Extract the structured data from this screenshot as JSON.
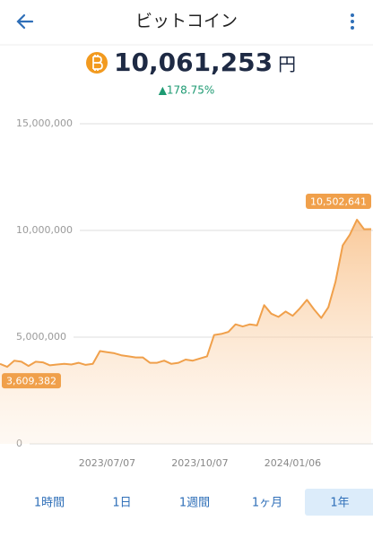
{
  "header": {
    "title": "ビットコイン"
  },
  "price": {
    "value": "10,061,253",
    "unit": "円",
    "change": "▲178.75%"
  },
  "chart_data": {
    "type": "area",
    "categories": [
      null,
      null,
      null,
      null,
      null,
      null,
      null,
      null,
      null,
      null,
      null,
      null,
      null,
      null,
      null,
      "2023/07/07",
      null,
      null,
      null,
      null,
      null,
      null,
      null,
      null,
      null,
      null,
      null,
      null,
      "2023/10/07",
      null,
      null,
      null,
      null,
      null,
      null,
      null,
      null,
      null,
      null,
      null,
      null,
      "2024/01/06",
      null,
      null,
      null,
      null,
      null,
      null,
      null,
      null,
      null,
      null,
      null
    ],
    "values": [
      3750000,
      3609382,
      3900000,
      3850000,
      3650000,
      3850000,
      3820000,
      3680000,
      3720000,
      3750000,
      3720000,
      3800000,
      3700000,
      3750000,
      4350000,
      4300000,
      4250000,
      4150000,
      4100000,
      4050000,
      4050000,
      3800000,
      3800000,
      3900000,
      3750000,
      3800000,
      3950000,
      3900000,
      4000000,
      4100000,
      5100000,
      5150000,
      5250000,
      5600000,
      5500000,
      5600000,
      5550000,
      6500000,
      6100000,
      5950000,
      6200000,
      6000000,
      6350000,
      6750000,
      6300000,
      5900000,
      6400000,
      7600000,
      9300000,
      9800000,
      10502641,
      10060000,
      10061253
    ],
    "value_labels": [
      null,
      "3,609,382",
      null,
      null,
      null,
      null,
      null,
      null,
      null,
      null,
      null,
      null,
      null,
      null,
      null,
      null,
      null,
      null,
      null,
      null,
      null,
      null,
      null,
      null,
      null,
      null,
      null,
      null,
      null,
      null,
      null,
      null,
      null,
      null,
      null,
      null,
      null,
      null,
      null,
      null,
      null,
      null,
      null,
      null,
      null,
      null,
      null,
      null,
      null,
      null,
      "10,502,641",
      null,
      null
    ],
    "color": "#f0a04b",
    "ylim": [
      0,
      15000000
    ],
    "yticks": [
      0,
      {
        "value": 5000000,
        "label": "5,000,000"
      },
      {
        "value": 10000000,
        "label": "10,000,000"
      },
      {
        "value": 15000000,
        "label": "15,000,000"
      }
    ],
    "grid": true
  },
  "range_buttons": {
    "options": [
      "1時間",
      "1日",
      "1週間",
      "1ヶ月",
      "1年"
    ],
    "selected": 4
  }
}
